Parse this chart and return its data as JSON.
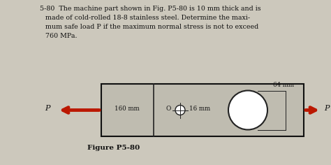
{
  "bg_color": "#ccc8bc",
  "rect_fill": "#bfbcb0",
  "rect_edge": "#111111",
  "arrow_color": "#bb1800",
  "text_color": "#111111",
  "figure_label": "Figure P5-80",
  "label_160": "160 mm",
  "label_16": "16 mm",
  "label_64": "64 mm",
  "P_label": "P",
  "line1": "5-80  The machine part shown in Fig. P5-80 is 10 mm thick and is",
  "line2": "made of cold-rolled 18-8 stainless steel. Determine the maxi-",
  "line3": "mum safe load P if the maximum normal stress is not to exceed",
  "line4": "760 MPa."
}
